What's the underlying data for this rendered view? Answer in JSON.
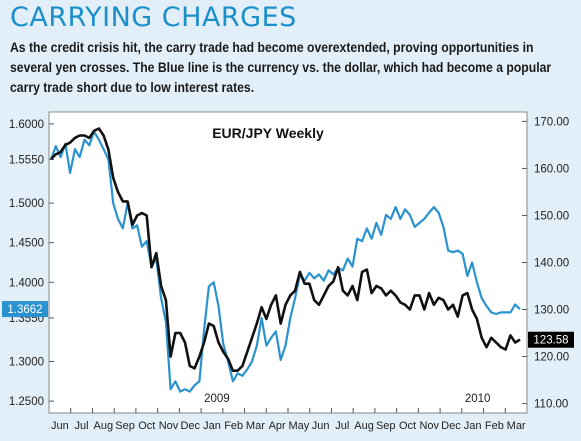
{
  "header": {
    "title": "CARRYING CHARGES",
    "subtitle": "As the credit crisis hit, the carry trade had become overextended, proving opportunities in several yen crosses. The Blue line is the currency vs. the dollar, which had become a popular carry trade short due to low interest rates."
  },
  "colors": {
    "background": "#e2eff8",
    "title": "#1c8fcb",
    "blue_series": "#2a93cf",
    "black_series": "#111111"
  },
  "chart_data": {
    "type": "line",
    "title": "EUR/JPY Weekly",
    "xlabel": "",
    "left_axis": {
      "ticks": [
        "1.6000",
        "1.5550",
        "1.5000",
        "1.4500",
        "1.4000",
        "1.3550",
        "1.3000",
        "1.2500"
      ],
      "range": [
        1.235,
        1.615
      ],
      "current_value_label": "1.3662"
    },
    "right_axis": {
      "ticks": [
        "170.00",
        "160.00",
        "150.00",
        "140.00",
        "130.00",
        "120.00",
        "110.00"
      ],
      "range": [
        108,
        172
      ],
      "current_value_label": "123.58"
    },
    "month_labels": [
      "Jun",
      "Jul",
      "Aug",
      "Sep",
      "Oct",
      "Nov",
      "Dec",
      "Jan",
      "Feb",
      "Mar",
      "Apr",
      "May",
      "Jun",
      "Jul",
      "Aug",
      "Sep",
      "Oct",
      "Nov",
      "Dec",
      "Jan",
      "Feb",
      "Mar"
    ],
    "year_labels": [
      {
        "label": "2009",
        "at_month": 7
      },
      {
        "label": "2010",
        "at_month": 19
      }
    ],
    "grid": false,
    "series": [
      {
        "axis": "left",
        "values": [
          1.555,
          1.572,
          1.558,
          1.575,
          1.538,
          1.568,
          1.558,
          1.58,
          1.573,
          1.59,
          1.58,
          1.568,
          1.555,
          1.5,
          1.48,
          1.468,
          1.5,
          1.468,
          1.472,
          1.445,
          1.452,
          1.42,
          1.43,
          1.38,
          1.35,
          1.265,
          1.275,
          1.262,
          1.265,
          1.262,
          1.27,
          1.275,
          1.34,
          1.395,
          1.4,
          1.37,
          1.322,
          1.3,
          1.275,
          1.285,
          1.282,
          1.29,
          1.3,
          1.32,
          1.355,
          1.32,
          1.33,
          1.338,
          1.302,
          1.32,
          1.355,
          1.38,
          1.41,
          1.402,
          1.412,
          1.405,
          1.41,
          1.402,
          1.415,
          1.41,
          1.418,
          1.415,
          1.43,
          1.42,
          1.455,
          1.452,
          1.468,
          1.455,
          1.475,
          1.46,
          1.485,
          1.48,
          1.495,
          1.48,
          1.492,
          1.485,
          1.47,
          1.475,
          1.48,
          1.488,
          1.495,
          1.488,
          1.47,
          1.44,
          1.438,
          1.44,
          1.436,
          1.408,
          1.425,
          1.4,
          1.38,
          1.37,
          1.362,
          1.36,
          1.362,
          1.362,
          1.362,
          1.372,
          1.366
        ]
      },
      {
        "axis": "right",
        "values": [
          162.0,
          163.0,
          163.5,
          165.0,
          165.5,
          166.5,
          167.0,
          167.0,
          166.5,
          168.0,
          168.5,
          167.0,
          164.0,
          158.0,
          155.0,
          153.0,
          153.0,
          148.0,
          150.0,
          150.5,
          150.0,
          139.0,
          142.0,
          135.0,
          132.0,
          120.0,
          125.0,
          125.0,
          123.0,
          118.0,
          117.5,
          120.0,
          123.0,
          127.0,
          126.5,
          123.0,
          121.0,
          119.5,
          117.0,
          117.0,
          118.0,
          121.0,
          124.0,
          127.0,
          130.5,
          128.0,
          131.0,
          133.0,
          127.0,
          131.0,
          133.0,
          134.0,
          138.0,
          135.5,
          135.5,
          132.0,
          131.0,
          133.0,
          135.0,
          136.0,
          139.0,
          134.0,
          133.0,
          135.0,
          132.0,
          138.0,
          138.5,
          133.5,
          135.0,
          134.5,
          133.0,
          134.0,
          133.0,
          131.5,
          131.0,
          130.0,
          133.0,
          133.0,
          130.0,
          133.5,
          131.0,
          132.5,
          132.0,
          130.0,
          131.0,
          128.5,
          133.0,
          133.5,
          130.0,
          128.0,
          124.0,
          122.0,
          124.0,
          123.0,
          122.0,
          121.5,
          124.5,
          123.0,
          123.6
        ]
      }
    ]
  }
}
